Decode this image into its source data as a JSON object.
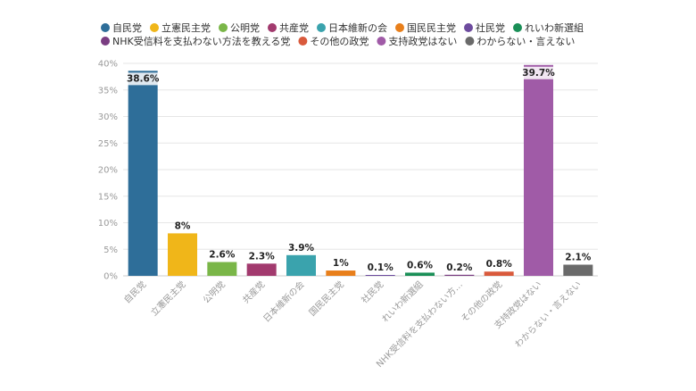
{
  "chart_data": {
    "type": "bar",
    "y_unit": "%",
    "ylim": [
      0,
      40
    ],
    "y_ticks": [
      0,
      5,
      10,
      15,
      20,
      25,
      30,
      35,
      40
    ],
    "grid": true,
    "legend_position": "top",
    "categories": [
      {
        "legend": "自民党",
        "axis_label": "自民党",
        "value": 38.6,
        "value_label": "38.6%",
        "color": "#2e6e99"
      },
      {
        "legend": "立憲民主党",
        "axis_label": "立憲民主党",
        "value": 8,
        "value_label": "8%",
        "color": "#f0b619"
      },
      {
        "legend": "公明党",
        "axis_label": "公明党",
        "value": 2.6,
        "value_label": "2.6%",
        "color": "#7ab648"
      },
      {
        "legend": "共産党",
        "axis_label": "共産党",
        "value": 2.3,
        "value_label": "2.3%",
        "color": "#a23a6e"
      },
      {
        "legend": "日本維新の会",
        "axis_label": "日本維新の会",
        "value": 3.9,
        "value_label": "3.9%",
        "color": "#3aa3ad"
      },
      {
        "legend": "国民民主党",
        "axis_label": "国民民主党",
        "value": 1,
        "value_label": "1%",
        "color": "#e87f1b"
      },
      {
        "legend": "社民党",
        "axis_label": "社民党",
        "value": 0.1,
        "value_label": "0.1%",
        "color": "#6d4b9e"
      },
      {
        "legend": "れいわ新選組",
        "axis_label": "れいわ新選組",
        "value": 0.6,
        "value_label": "0.6%",
        "color": "#1a8f57"
      },
      {
        "legend": "NHK受信料を支払わない方法を教える党",
        "axis_label": "NHK受信料を支払わない方…",
        "value": 0.2,
        "value_label": "0.2%",
        "color": "#7a3d82"
      },
      {
        "legend": "その他の政党",
        "axis_label": "その他の政党",
        "value": 0.8,
        "value_label": "0.8%",
        "color": "#d95a3c"
      },
      {
        "legend": "支持政党はない",
        "axis_label": "支持政党はない",
        "value": 39.7,
        "value_label": "39.7%",
        "color": "#a05ba7"
      },
      {
        "legend": "わからない・言えない",
        "axis_label": "わからない・言えない",
        "value": 2.1,
        "value_label": "2.1%",
        "color": "#6a6a6a"
      }
    ]
  }
}
